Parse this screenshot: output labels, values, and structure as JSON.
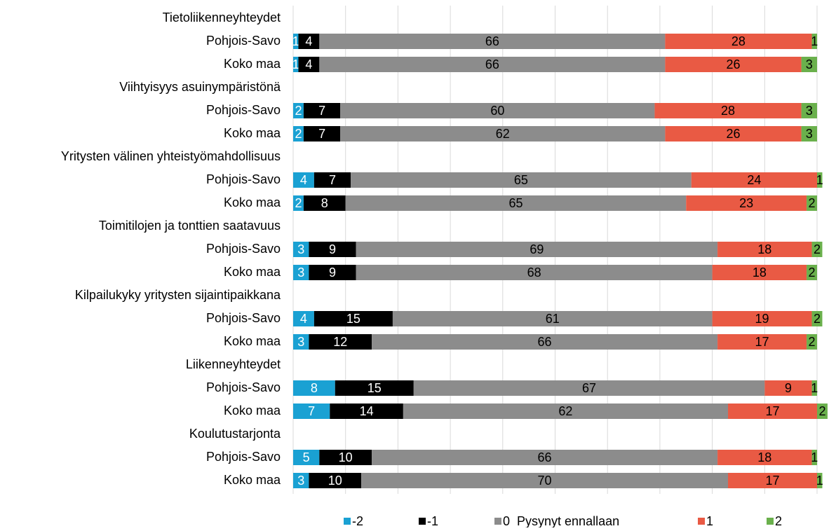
{
  "chart_data": {
    "type": "stacked-bar-horizontal",
    "categories": [
      "Tietoliikenneyhteydet",
      "Pohjois-Savo",
      "Koko maa",
      "Viihtyisyys asuinympäristönä",
      "Pohjois-Savo",
      "Koko maa",
      "Yritysten välinen yhteistyömahdollisuus",
      "Pohjois-Savo",
      "Koko maa",
      "Toimitilojen ja tonttien saatavuus",
      "Pohjois-Savo",
      "Koko maa",
      "Kilpailukyky yritysten sijaintipaikkana",
      "Pohjois-Savo",
      "Koko maa",
      "Liikenneyhteydet",
      "Pohjois-Savo",
      "Koko maa",
      "Koulutustarjonta",
      "Pohjois-Savo",
      "Koko maa"
    ],
    "series": [
      {
        "name": "-2",
        "color": "#1aa1d3",
        "values": [
          null,
          1,
          1,
          null,
          2,
          2,
          null,
          4,
          2,
          null,
          3,
          3,
          null,
          4,
          3,
          null,
          8,
          7,
          null,
          5,
          3
        ]
      },
      {
        "name": "-1",
        "color": "#000000",
        "values": [
          null,
          4,
          4,
          null,
          7,
          7,
          null,
          7,
          8,
          null,
          9,
          9,
          null,
          15,
          12,
          null,
          15,
          14,
          null,
          10,
          10
        ]
      },
      {
        "name": "0  Pysynyt ennallaan",
        "color": "#8c8c8c",
        "values": [
          null,
          66,
          66,
          null,
          60,
          62,
          null,
          65,
          65,
          null,
          69,
          68,
          null,
          61,
          66,
          null,
          67,
          62,
          null,
          66,
          70
        ]
      },
      {
        "name": "1",
        "color": "#e95a44",
        "values": [
          null,
          28,
          26,
          null,
          28,
          26,
          null,
          24,
          23,
          null,
          18,
          18,
          null,
          19,
          17,
          null,
          9,
          17,
          null,
          18,
          17
        ]
      },
      {
        "name": "2",
        "color": "#6ab04c",
        "values": [
          null,
          1,
          3,
          null,
          3,
          3,
          null,
          1,
          2,
          null,
          2,
          2,
          null,
          2,
          2,
          null,
          1,
          2,
          null,
          1,
          1
        ]
      }
    ],
    "xlim": [
      0,
      100
    ],
    "xticks": [
      0,
      10,
      20,
      30,
      40,
      50,
      60,
      70,
      80,
      90,
      100
    ],
    "grid": true,
    "legend": "bottom"
  }
}
